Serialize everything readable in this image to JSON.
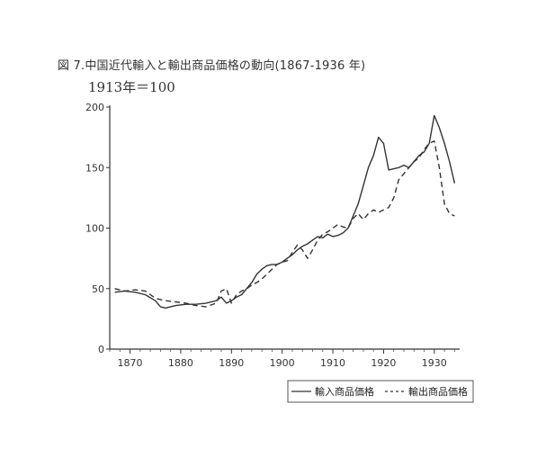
{
  "chart_data": {
    "type": "line",
    "title": "図 7.中国近代輸入と輸出商品価格の動向(1867-1936 年)",
    "subtitle": "1913年＝100",
    "xlabel": "",
    "ylabel": "",
    "xlim": [
      1866,
      1935
    ],
    "ylim": [
      0,
      200
    ],
    "x_ticks": [
      1870,
      1880,
      1890,
      1900,
      1910,
      1920,
      1930
    ],
    "y_ticks": [
      0,
      50,
      100,
      150,
      200
    ],
    "grid": false,
    "legend_position": "bottom-right",
    "series": [
      {
        "name": "輸入商品価格",
        "style": "solid",
        "points": [
          [
            1867,
            47
          ],
          [
            1869,
            48
          ],
          [
            1871,
            47
          ],
          [
            1873,
            45
          ],
          [
            1875,
            40
          ],
          [
            1876,
            35
          ],
          [
            1877,
            34
          ],
          [
            1879,
            36
          ],
          [
            1881,
            37
          ],
          [
            1883,
            37
          ],
          [
            1885,
            38
          ],
          [
            1887,
            40
          ],
          [
            1888,
            43
          ],
          [
            1889,
            38
          ],
          [
            1890,
            40
          ],
          [
            1891,
            43
          ],
          [
            1892,
            45
          ],
          [
            1893,
            50
          ],
          [
            1894,
            55
          ],
          [
            1895,
            62
          ],
          [
            1896,
            66
          ],
          [
            1897,
            69
          ],
          [
            1898,
            70
          ],
          [
            1899,
            70
          ],
          [
            1900,
            72
          ],
          [
            1901,
            75
          ],
          [
            1902,
            78
          ],
          [
            1903,
            82
          ],
          [
            1904,
            85
          ],
          [
            1905,
            87
          ],
          [
            1906,
            90
          ],
          [
            1907,
            93
          ],
          [
            1908,
            92
          ],
          [
            1909,
            95
          ],
          [
            1910,
            93
          ],
          [
            1911,
            94
          ],
          [
            1912,
            96
          ],
          [
            1913,
            100
          ],
          [
            1914,
            110
          ],
          [
            1915,
            120
          ],
          [
            1916,
            135
          ],
          [
            1917,
            150
          ],
          [
            1918,
            160
          ],
          [
            1919,
            175
          ],
          [
            1920,
            170
          ],
          [
            1921,
            148
          ],
          [
            1922,
            149
          ],
          [
            1923,
            150
          ],
          [
            1924,
            152
          ],
          [
            1925,
            150
          ],
          [
            1926,
            155
          ],
          [
            1927,
            160
          ],
          [
            1928,
            163
          ],
          [
            1929,
            170
          ],
          [
            1930,
            193
          ],
          [
            1931,
            183
          ],
          [
            1932,
            170
          ],
          [
            1933,
            155
          ],
          [
            1934,
            137
          ]
        ]
      },
      {
        "name": "輸出商品価格",
        "style": "dashed",
        "points": [
          [
            1867,
            50
          ],
          [
            1869,
            48
          ],
          [
            1871,
            49
          ],
          [
            1873,
            48
          ],
          [
            1875,
            42
          ],
          [
            1877,
            40
          ],
          [
            1879,
            39
          ],
          [
            1881,
            38
          ],
          [
            1883,
            36
          ],
          [
            1885,
            35
          ],
          [
            1887,
            38
          ],
          [
            1888,
            48
          ],
          [
            1889,
            50
          ],
          [
            1890,
            38
          ],
          [
            1891,
            45
          ],
          [
            1892,
            48
          ],
          [
            1893,
            50
          ],
          [
            1894,
            53
          ],
          [
            1895,
            55
          ],
          [
            1896,
            58
          ],
          [
            1897,
            62
          ],
          [
            1898,
            66
          ],
          [
            1899,
            70
          ],
          [
            1900,
            72
          ],
          [
            1901,
            73
          ],
          [
            1902,
            80
          ],
          [
            1903,
            86
          ],
          [
            1904,
            82
          ],
          [
            1905,
            75
          ],
          [
            1906,
            82
          ],
          [
            1907,
            90
          ],
          [
            1908,
            95
          ],
          [
            1909,
            97
          ],
          [
            1910,
            100
          ],
          [
            1911,
            103
          ],
          [
            1912,
            101
          ],
          [
            1913,
            100
          ],
          [
            1914,
            108
          ],
          [
            1915,
            112
          ],
          [
            1916,
            107
          ],
          [
            1917,
            112
          ],
          [
            1918,
            115
          ],
          [
            1919,
            113
          ],
          [
            1920,
            115
          ],
          [
            1921,
            117
          ],
          [
            1922,
            125
          ],
          [
            1923,
            140
          ],
          [
            1924,
            145
          ],
          [
            1925,
            150
          ],
          [
            1926,
            155
          ],
          [
            1927,
            158
          ],
          [
            1928,
            165
          ],
          [
            1929,
            170
          ],
          [
            1930,
            172
          ],
          [
            1931,
            150
          ],
          [
            1932,
            120
          ],
          [
            1933,
            112
          ],
          [
            1934,
            110
          ]
        ]
      }
    ]
  }
}
